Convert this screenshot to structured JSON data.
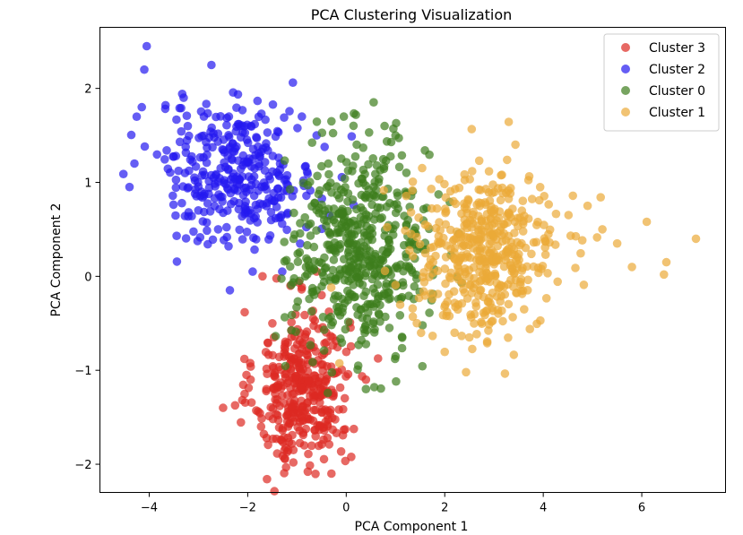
{
  "chart_data": {
    "type": "scatter",
    "title": "PCA Clustering Visualization",
    "xlabel": "PCA Component 1",
    "ylabel": "PCA Component 2",
    "xlim": [
      -5.0,
      7.7
    ],
    "ylim": [
      -2.3,
      2.65
    ],
    "xticks": [
      -4,
      -2,
      0,
      2,
      4,
      6
    ],
    "yticks": [
      -2,
      -1,
      0,
      1,
      2
    ],
    "grid": false,
    "legend_position": "top-right",
    "series": [
      {
        "name": "Cluster 3",
        "color": "#dd2a22",
        "center": [
          -0.9,
          -1.2
        ],
        "spread": [
          0.48,
          0.42
        ],
        "n": 380,
        "outliers": [
          [
            -1.7,
            0.0
          ],
          [
            -0.6,
            0.05
          ],
          [
            -0.3,
            -2.1
          ],
          [
            -2.5,
            -1.4
          ],
          [
            0.4,
            -1.1
          ],
          [
            -1.5,
            -0.5
          ],
          [
            -0.5,
            -0.2
          ]
        ]
      },
      {
        "name": "Cluster 2",
        "color": "#2418f0",
        "center": [
          -2.2,
          1.1
        ],
        "spread": [
          0.8,
          0.38
        ],
        "n": 340,
        "outliers": [
          [
            -4.05,
            2.45
          ],
          [
            -4.1,
            2.2
          ],
          [
            -4.15,
            1.8
          ],
          [
            -4.3,
            1.2
          ],
          [
            -4.4,
            0.95
          ],
          [
            -3.3,
            1.9
          ],
          [
            -2.6,
            0.5
          ],
          [
            -1.9,
            0.05
          ],
          [
            -1.3,
            0.05
          ],
          [
            -0.6,
            1.5
          ],
          [
            -0.9,
            1.7
          ]
        ]
      },
      {
        "name": "Cluster 0",
        "color": "#3d7e1c",
        "center": [
          0.3,
          0.3
        ],
        "spread": [
          0.7,
          0.55
        ],
        "n": 520,
        "outliers": [
          [
            -0.05,
            1.7
          ],
          [
            1.0,
            1.5
          ],
          [
            -0.3,
            1.65
          ],
          [
            0.4,
            -1.2
          ],
          [
            1.2,
            0.9
          ]
        ]
      },
      {
        "name": "Cluster 1",
        "color": "#ebaa38",
        "center": [
          2.8,
          0.25
        ],
        "spread": [
          0.75,
          0.42
        ],
        "n": 470,
        "outliers": [
          [
            7.1,
            0.4
          ],
          [
            6.1,
            0.58
          ],
          [
            6.5,
            0.15
          ],
          [
            6.45,
            0.02
          ],
          [
            5.5,
            0.35
          ],
          [
            5.8,
            0.1
          ],
          [
            4.9,
            0.75
          ],
          [
            5.2,
            0.5
          ],
          [
            2.2,
            -0.6
          ],
          [
            2.5,
            -0.65
          ]
        ]
      }
    ],
    "legend_order": [
      "Cluster 3",
      "Cluster 2",
      "Cluster 0",
      "Cluster 1"
    ]
  }
}
